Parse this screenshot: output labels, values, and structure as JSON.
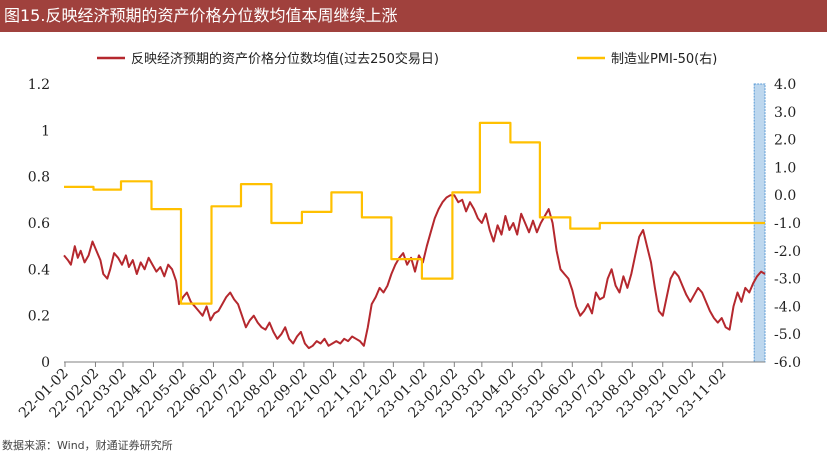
{
  "title": "图15.反映经济预期的资产价格分位数均值本周继续上涨",
  "source": "数据来源：Wind，财通证券研究所",
  "colors": {
    "title_bg": "#A0413D",
    "series_left": "#B5282E",
    "series_right": "#FFC000",
    "highlight": "#BDD7EE",
    "axis": "#808080"
  },
  "chart_data": {
    "type": "line",
    "legend_position": "top",
    "grid": false,
    "x_ticks": [
      "22-01-02",
      "22-02-02",
      "22-03-02",
      "22-04-02",
      "22-05-02",
      "22-06-02",
      "22-07-02",
      "22-08-02",
      "22-09-02",
      "22-10-02",
      "22-11-02",
      "22-12-02",
      "23-01-02",
      "23-02-02",
      "23-03-02",
      "23-04-02",
      "23-05-02",
      "23-06-02",
      "23-07-02",
      "23-08-02",
      "23-09-02",
      "23-10-02",
      "23-11-02"
    ],
    "x_range": [
      "2022-01-01",
      "2023-12-15"
    ],
    "y_left": {
      "ticks": [
        "1.2",
        "1",
        "0.8",
        "0.6",
        "0.4",
        "0.2",
        "0"
      ],
      "range": [
        0,
        1.2
      ]
    },
    "y_right": {
      "ticks": [
        "4.0",
        "3.0",
        "2.0",
        "1.0",
        "0.0",
        "-1.0",
        "-2.0",
        "-3.0",
        "-4.0",
        "-5.0",
        "-6.0"
      ],
      "range": [
        -6,
        4
      ]
    },
    "highlight_band": [
      "2023-12-04",
      "2023-12-15"
    ],
    "series": [
      {
        "name": "反映经济预期的资产价格分位数均值(过去250交易日)",
        "axis": "left",
        "points": [
          [
            "2022-01-01",
            0.46
          ],
          [
            "2022-01-05",
            0.44
          ],
          [
            "2022-01-08",
            0.42
          ],
          [
            "2022-01-12",
            0.5
          ],
          [
            "2022-01-15",
            0.45
          ],
          [
            "2022-01-18",
            0.48
          ],
          [
            "2022-01-22",
            0.43
          ],
          [
            "2022-01-26",
            0.46
          ],
          [
            "2022-01-30",
            0.52
          ],
          [
            "2022-02-03",
            0.48
          ],
          [
            "2022-02-07",
            0.44
          ],
          [
            "2022-02-10",
            0.38
          ],
          [
            "2022-02-14",
            0.36
          ],
          [
            "2022-02-17",
            0.4
          ],
          [
            "2022-02-21",
            0.47
          ],
          [
            "2022-02-25",
            0.45
          ],
          [
            "2022-03-01",
            0.42
          ],
          [
            "2022-03-05",
            0.46
          ],
          [
            "2022-03-08",
            0.41
          ],
          [
            "2022-03-12",
            0.44
          ],
          [
            "2022-03-16",
            0.38
          ],
          [
            "2022-03-20",
            0.43
          ],
          [
            "2022-03-24",
            0.4
          ],
          [
            "2022-03-28",
            0.45
          ],
          [
            "2022-04-01",
            0.42
          ],
          [
            "2022-04-05",
            0.39
          ],
          [
            "2022-04-09",
            0.41
          ],
          [
            "2022-04-13",
            0.37
          ],
          [
            "2022-04-17",
            0.42
          ],
          [
            "2022-04-21",
            0.4
          ],
          [
            "2022-04-25",
            0.35
          ],
          [
            "2022-04-28",
            0.25
          ],
          [
            "2022-05-02",
            0.28
          ],
          [
            "2022-05-06",
            0.3
          ],
          [
            "2022-05-10",
            0.26
          ],
          [
            "2022-05-14",
            0.24
          ],
          [
            "2022-05-18",
            0.22
          ],
          [
            "2022-05-22",
            0.2
          ],
          [
            "2022-05-26",
            0.24
          ],
          [
            "2022-05-30",
            0.18
          ],
          [
            "2022-06-03",
            0.21
          ],
          [
            "2022-06-07",
            0.22
          ],
          [
            "2022-06-11",
            0.25
          ],
          [
            "2022-06-15",
            0.28
          ],
          [
            "2022-06-19",
            0.3
          ],
          [
            "2022-06-23",
            0.27
          ],
          [
            "2022-06-27",
            0.25
          ],
          [
            "2022-07-01",
            0.2
          ],
          [
            "2022-07-05",
            0.15
          ],
          [
            "2022-07-09",
            0.18
          ],
          [
            "2022-07-13",
            0.2
          ],
          [
            "2022-07-17",
            0.17
          ],
          [
            "2022-07-21",
            0.15
          ],
          [
            "2022-07-25",
            0.14
          ],
          [
            "2022-07-29",
            0.17
          ],
          [
            "2022-08-02",
            0.13
          ],
          [
            "2022-08-06",
            0.1
          ],
          [
            "2022-08-10",
            0.12
          ],
          [
            "2022-08-14",
            0.15
          ],
          [
            "2022-08-18",
            0.1
          ],
          [
            "2022-08-22",
            0.08
          ],
          [
            "2022-08-26",
            0.11
          ],
          [
            "2022-08-30",
            0.13
          ],
          [
            "2022-09-03",
            0.08
          ],
          [
            "2022-09-07",
            0.06
          ],
          [
            "2022-09-11",
            0.07
          ],
          [
            "2022-09-15",
            0.09
          ],
          [
            "2022-09-19",
            0.08
          ],
          [
            "2022-09-23",
            0.1
          ],
          [
            "2022-09-27",
            0.07
          ],
          [
            "2022-10-01",
            0.08
          ],
          [
            "2022-10-05",
            0.09
          ],
          [
            "2022-10-09",
            0.08
          ],
          [
            "2022-10-13",
            0.1
          ],
          [
            "2022-10-17",
            0.09
          ],
          [
            "2022-10-21",
            0.11
          ],
          [
            "2022-10-25",
            0.1
          ],
          [
            "2022-10-29",
            0.09
          ],
          [
            "2022-11-02",
            0.07
          ],
          [
            "2022-11-06",
            0.15
          ],
          [
            "2022-11-10",
            0.25
          ],
          [
            "2022-11-14",
            0.28
          ],
          [
            "2022-11-18",
            0.32
          ],
          [
            "2022-11-22",
            0.3
          ],
          [
            "2022-11-26",
            0.33
          ],
          [
            "2022-11-30",
            0.38
          ],
          [
            "2022-12-04",
            0.42
          ],
          [
            "2022-12-08",
            0.45
          ],
          [
            "2022-12-12",
            0.47
          ],
          [
            "2022-12-16",
            0.42
          ],
          [
            "2022-12-20",
            0.45
          ],
          [
            "2022-12-24",
            0.39
          ],
          [
            "2022-12-28",
            0.46
          ],
          [
            "2023-01-01",
            0.43
          ],
          [
            "2023-01-05",
            0.5
          ],
          [
            "2023-01-09",
            0.56
          ],
          [
            "2023-01-13",
            0.62
          ],
          [
            "2023-01-17",
            0.66
          ],
          [
            "2023-01-21",
            0.69
          ],
          [
            "2023-01-25",
            0.71
          ],
          [
            "2023-01-29",
            0.72
          ],
          [
            "2023-02-02",
            0.72
          ],
          [
            "2023-02-06",
            0.69
          ],
          [
            "2023-02-10",
            0.7
          ],
          [
            "2023-02-14",
            0.65
          ],
          [
            "2023-02-18",
            0.69
          ],
          [
            "2023-02-22",
            0.66
          ],
          [
            "2023-02-26",
            0.62
          ],
          [
            "2023-03-02",
            0.6
          ],
          [
            "2023-03-06",
            0.64
          ],
          [
            "2023-03-10",
            0.57
          ],
          [
            "2023-03-14",
            0.52
          ],
          [
            "2023-03-18",
            0.59
          ],
          [
            "2023-03-22",
            0.55
          ],
          [
            "2023-03-26",
            0.63
          ],
          [
            "2023-03-30",
            0.57
          ],
          [
            "2023-04-03",
            0.6
          ],
          [
            "2023-04-07",
            0.55
          ],
          [
            "2023-04-11",
            0.64
          ],
          [
            "2023-04-15",
            0.6
          ],
          [
            "2023-04-19",
            0.56
          ],
          [
            "2023-04-23",
            0.61
          ],
          [
            "2023-04-27",
            0.56
          ],
          [
            "2023-05-01",
            0.6
          ],
          [
            "2023-05-05",
            0.63
          ],
          [
            "2023-05-09",
            0.66
          ],
          [
            "2023-05-13",
            0.6
          ],
          [
            "2023-05-17",
            0.48
          ],
          [
            "2023-05-21",
            0.4
          ],
          [
            "2023-05-25",
            0.38
          ],
          [
            "2023-05-29",
            0.36
          ],
          [
            "2023-06-02",
            0.31
          ],
          [
            "2023-06-06",
            0.24
          ],
          [
            "2023-06-10",
            0.2
          ],
          [
            "2023-06-14",
            0.22
          ],
          [
            "2023-06-18",
            0.25
          ],
          [
            "2023-06-22",
            0.21
          ],
          [
            "2023-06-26",
            0.3
          ],
          [
            "2023-06-30",
            0.27
          ],
          [
            "2023-07-04",
            0.28
          ],
          [
            "2023-07-08",
            0.36
          ],
          [
            "2023-07-12",
            0.4
          ],
          [
            "2023-07-16",
            0.33
          ],
          [
            "2023-07-20",
            0.3
          ],
          [
            "2023-07-24",
            0.37
          ],
          [
            "2023-07-28",
            0.32
          ],
          [
            "2023-08-01",
            0.38
          ],
          [
            "2023-08-05",
            0.46
          ],
          [
            "2023-08-09",
            0.54
          ],
          [
            "2023-08-13",
            0.57
          ],
          [
            "2023-08-17",
            0.5
          ],
          [
            "2023-08-21",
            0.43
          ],
          [
            "2023-08-25",
            0.32
          ],
          [
            "2023-08-29",
            0.22
          ],
          [
            "2023-09-02",
            0.2
          ],
          [
            "2023-09-06",
            0.28
          ],
          [
            "2023-09-10",
            0.36
          ],
          [
            "2023-09-14",
            0.39
          ],
          [
            "2023-09-18",
            0.37
          ],
          [
            "2023-09-22",
            0.33
          ],
          [
            "2023-09-26",
            0.29
          ],
          [
            "2023-09-30",
            0.26
          ],
          [
            "2023-10-04",
            0.29
          ],
          [
            "2023-10-08",
            0.32
          ],
          [
            "2023-10-12",
            0.3
          ],
          [
            "2023-10-16",
            0.26
          ],
          [
            "2023-10-20",
            0.22
          ],
          [
            "2023-10-24",
            0.19
          ],
          [
            "2023-10-28",
            0.17
          ],
          [
            "2023-11-01",
            0.19
          ],
          [
            "2023-11-05",
            0.15
          ],
          [
            "2023-11-09",
            0.14
          ],
          [
            "2023-11-13",
            0.24
          ],
          [
            "2023-11-17",
            0.3
          ],
          [
            "2023-11-21",
            0.26
          ],
          [
            "2023-11-25",
            0.32
          ],
          [
            "2023-11-29",
            0.3
          ],
          [
            "2023-12-03",
            0.34
          ],
          [
            "2023-12-07",
            0.37
          ],
          [
            "2023-12-11",
            0.39
          ],
          [
            "2023-12-15",
            0.38
          ]
        ]
      },
      {
        "name": "制造业PMI-50(右)",
        "axis": "right",
        "points": [
          [
            "2022-01-01",
            0.3
          ],
          [
            "2022-01-31",
            0.3
          ],
          [
            "2022-01-31",
            0.2
          ],
          [
            "2022-02-28",
            0.2
          ],
          [
            "2022-02-28",
            0.5
          ],
          [
            "2022-03-31",
            0.5
          ],
          [
            "2022-03-31",
            -0.5
          ],
          [
            "2022-04-30",
            -0.5
          ],
          [
            "2022-04-30",
            -3.9
          ],
          [
            "2022-05-31",
            -3.9
          ],
          [
            "2022-05-31",
            -0.4
          ],
          [
            "2022-06-30",
            -0.4
          ],
          [
            "2022-06-30",
            0.4
          ],
          [
            "2022-07-31",
            0.4
          ],
          [
            "2022-07-31",
            -1.0
          ],
          [
            "2022-08-31",
            -1.0
          ],
          [
            "2022-08-31",
            -0.6
          ],
          [
            "2022-09-30",
            -0.6
          ],
          [
            "2022-09-30",
            0.1
          ],
          [
            "2022-10-31",
            0.1
          ],
          [
            "2022-10-31",
            -0.8
          ],
          [
            "2022-11-30",
            -0.8
          ],
          [
            "2022-11-30",
            -2.3
          ],
          [
            "2022-12-31",
            -2.3
          ],
          [
            "2022-12-31",
            -3.0
          ],
          [
            "2023-01-31",
            -3.0
          ],
          [
            "2023-01-31",
            0.1
          ],
          [
            "2023-02-28",
            0.1
          ],
          [
            "2023-02-28",
            2.6
          ],
          [
            "2023-03-31",
            2.6
          ],
          [
            "2023-03-31",
            1.9
          ],
          [
            "2023-04-30",
            1.9
          ],
          [
            "2023-04-30",
            -0.8
          ],
          [
            "2023-05-31",
            -0.8
          ],
          [
            "2023-05-31",
            -1.2
          ],
          [
            "2023-06-30",
            -1.2
          ],
          [
            "2023-06-30",
            -1.0
          ],
          [
            "2023-12-15",
            -1.0
          ]
        ]
      }
    ]
  }
}
